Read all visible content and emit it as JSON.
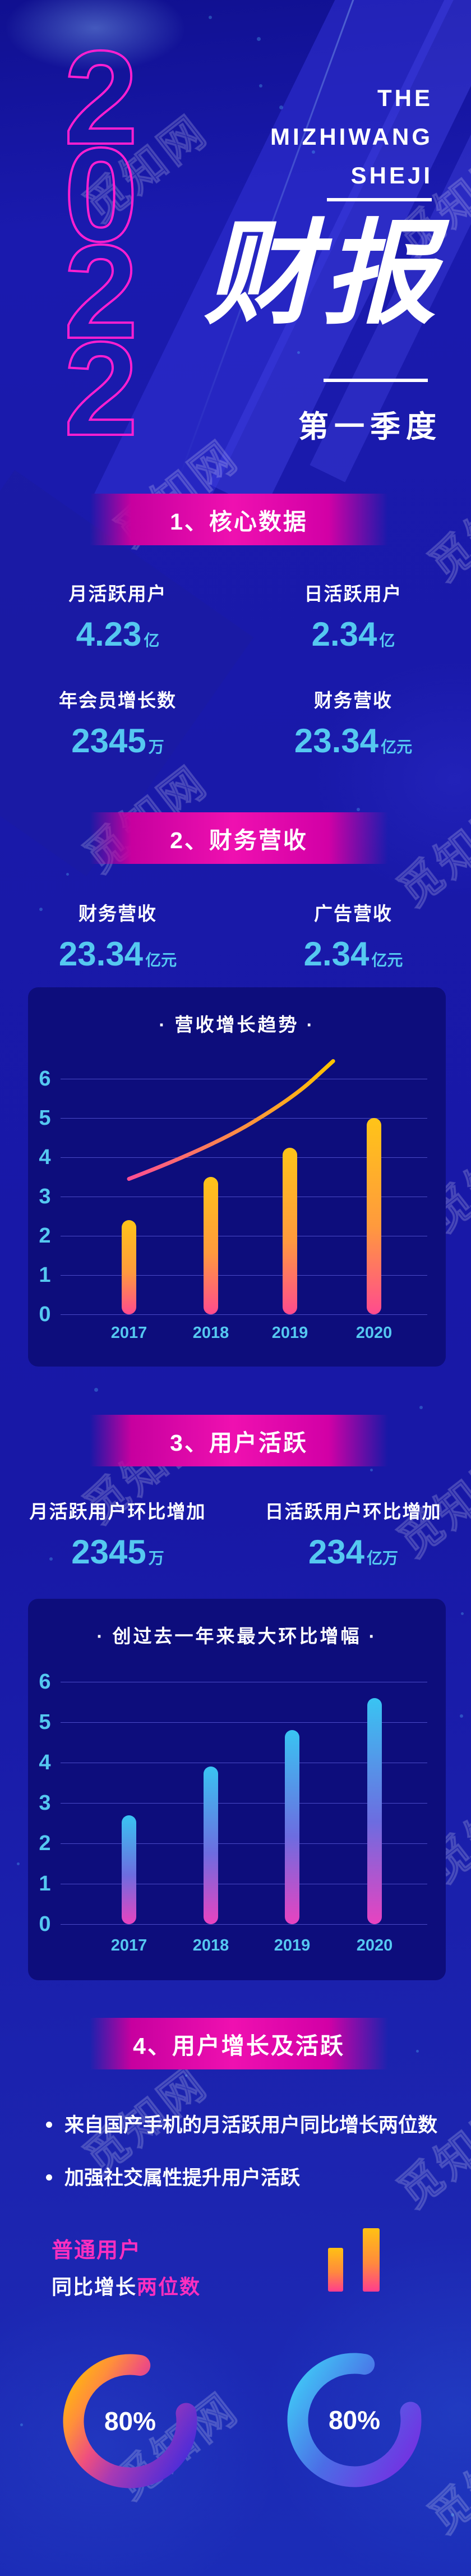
{
  "page": {
    "colors": {
      "bg": "#1818a6",
      "accent_magenta": "#e90cae",
      "cyan": "#55c8f0",
      "panel": "#0d0d7c",
      "year_outline": "#ff1fd0"
    }
  },
  "header": {
    "year": "2022",
    "brand": {
      "line1": "THE",
      "line2": "MIZHIWANG",
      "line3": "SHEJI"
    },
    "title": "财报",
    "subtitle": "第一季度"
  },
  "section1": {
    "banner": "1、核心数据",
    "stats": [
      {
        "label": "月活跃用户",
        "number": "4.23",
        "unit": "亿"
      },
      {
        "label": "日活跃用户",
        "number": "2.34",
        "unit": "亿"
      },
      {
        "label": "年会员增长数",
        "number": "2345",
        "unit": "万"
      },
      {
        "label": "财务营收",
        "number": "23.34",
        "unit": "亿元"
      }
    ]
  },
  "section2": {
    "banner": "2、财务营收",
    "stats": [
      {
        "label": "财务营收",
        "number": "23.34",
        "unit": "亿元"
      },
      {
        "label": "广告营收",
        "number": "2.34",
        "unit": "亿元"
      }
    ]
  },
  "section3": {
    "banner": "3、用户活跃",
    "stats": [
      {
        "label": "月活跃用户环比增加",
        "number": "2345",
        "unit": "万"
      },
      {
        "label": "日活跃用户环比增加",
        "number": "234",
        "unit": "亿万"
      }
    ]
  },
  "section4": {
    "banner": "4、用户增长及活跃",
    "bullets": [
      "来自国产手机的月活跃用户同比增长两位数",
      "加强社交属性提升用户活跃"
    ],
    "highlight": {
      "line1": "普通用户",
      "line2_prefix": "同比增长",
      "line2_accent": "两位数"
    },
    "donuts": [
      {
        "value": 80,
        "label": "80%",
        "palette": [
          "#ffc103",
          "#ff8f3a",
          "#ef4f7e",
          "#4c2cd9"
        ]
      },
      {
        "value": 80,
        "label": "80%",
        "palette": [
          "#3fd0f8",
          "#4b6de6",
          "#7233e2"
        ]
      }
    ]
  },
  "chart_data": [
    {
      "type": "bar",
      "title": "·  营收增长趋势  ·",
      "categories": [
        "2017",
        "2018",
        "2019",
        "2020"
      ],
      "values": [
        2.4,
        3.5,
        4.25,
        5.0
      ],
      "line_points": [
        [
          2017,
          3.45
        ],
        [
          2018,
          4.25
        ],
        [
          2019,
          5.5
        ],
        [
          2019.5,
          6.45
        ]
      ],
      "ylim": [
        0,
        6
      ],
      "yticks": [
        0,
        1,
        2,
        3,
        4,
        5,
        6
      ],
      "xlabel": "",
      "ylabel": "",
      "grid": true,
      "bar_gradient": [
        "#ffc418",
        "#ff9a3d",
        "#ff4b8e"
      ],
      "line_gradient": [
        "#ff4d94",
        "#ffc400"
      ]
    },
    {
      "type": "bar",
      "title": "·  创过去一年来最大环比增幅  ·",
      "categories": [
        "2017",
        "2018",
        "2019",
        "2020"
      ],
      "values": [
        2.7,
        3.9,
        4.8,
        5.6
      ],
      "ylim": [
        0,
        6
      ],
      "yticks": [
        0,
        1,
        2,
        3,
        4,
        5,
        6
      ],
      "xlabel": "",
      "ylabel": "",
      "grid": true,
      "bar_gradient": [
        "#39c4f2",
        "#6d6ce0",
        "#e843c0"
      ]
    }
  ]
}
